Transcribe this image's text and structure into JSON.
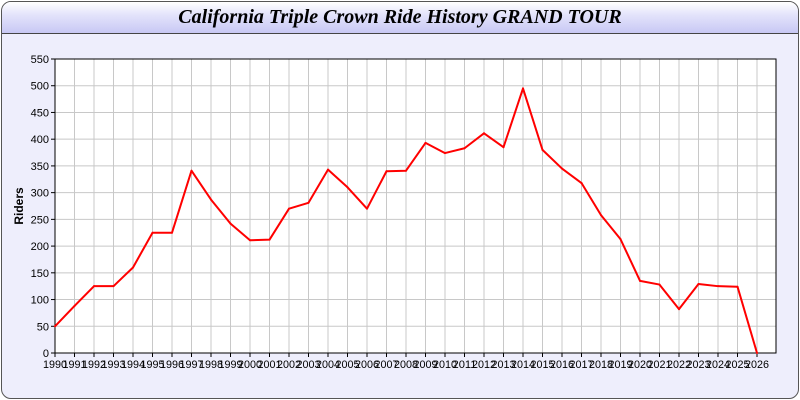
{
  "chart_data": {
    "type": "line",
    "title": "California Triple Crown Ride History GRAND TOUR",
    "xlabel": "",
    "ylabel": "Riders",
    "ylim": [
      0,
      550
    ],
    "yticks": [
      0,
      50,
      100,
      150,
      200,
      250,
      300,
      350,
      400,
      450,
      500,
      550
    ],
    "grid": true,
    "line_color": "#ff0000",
    "x": [
      1990,
      1991,
      1992,
      1993,
      1994,
      1995,
      1996,
      1997,
      1998,
      1999,
      2000,
      2001,
      2002,
      2003,
      2004,
      2005,
      2006,
      2007,
      2008,
      2009,
      2010,
      2011,
      2012,
      2013,
      2014,
      2015,
      2016,
      2017,
      2018,
      2019,
      2020,
      2021,
      2022,
      2023,
      2024,
      2025,
      2026
    ],
    "series": [
      {
        "values": [
          50,
          88,
          125,
          125,
          160,
          225,
          225,
          341,
          287,
          242,
          211,
          212,
          270,
          281,
          343,
          310,
          270,
          340,
          341,
          393,
          374,
          383,
          411,
          385,
          495,
          380,
          345,
          318,
          258,
          213,
          135,
          128,
          82,
          129,
          125,
          124,
          0
        ]
      }
    ]
  }
}
